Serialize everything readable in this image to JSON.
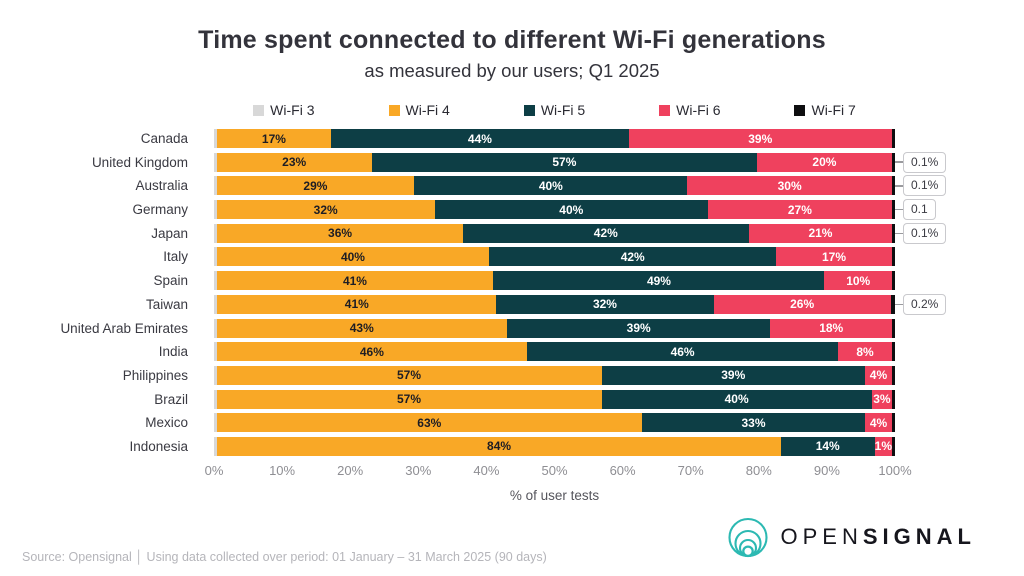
{
  "header": {
    "title": "Time spent connected to different Wi-Fi generations",
    "subtitle": "as measured by our users; Q1 2025"
  },
  "chart_data": {
    "type": "bar",
    "orientation": "horizontal",
    "stacked": true,
    "title": "Time spent connected to different Wi-Fi generations",
    "subtitle": "as measured by our users; Q1 2025",
    "xlabel": "% of user tests",
    "xlim": [
      0,
      100
    ],
    "x_ticks": [
      "0%",
      "10%",
      "20%",
      "30%",
      "40%",
      "50%",
      "60%",
      "70%",
      "80%",
      "90%",
      "100%"
    ],
    "legend_position": "top",
    "categories": [
      "Canada",
      "United Kingdom",
      "Australia",
      "Germany",
      "Japan",
      "Italy",
      "Spain",
      "Taiwan",
      "United Arab Emirates",
      "India",
      "Philippines",
      "Brazil",
      "Mexico",
      "Indonesia"
    ],
    "series": [
      {
        "name": "Wi-Fi 3",
        "color": "#d8d8d8",
        "show_labels": false,
        "label_color": "#3a3a42",
        "values": [
          0.2,
          0.2,
          0.3,
          0.3,
          0.5,
          0.3,
          0.2,
          0.5,
          0.2,
          0.3,
          0.3,
          0.3,
          0.3,
          0.5
        ]
      },
      {
        "name": "Wi-Fi 4",
        "color": "#f9a826",
        "show_labels": true,
        "label_color": "#1d1d24",
        "values": [
          17,
          23,
          29,
          32,
          36,
          40,
          41,
          41,
          43,
          46,
          57,
          57,
          63,
          84
        ]
      },
      {
        "name": "Wi-Fi 5",
        "color": "#0d3e45",
        "show_labels": true,
        "label_color": "#ffffff",
        "values": [
          44,
          57,
          40,
          40,
          42,
          42,
          49,
          32,
          39,
          46,
          39,
          40,
          33,
          14
        ]
      },
      {
        "name": "Wi-Fi 6",
        "color": "#ef415e",
        "show_labels": true,
        "label_color": "#ffffff",
        "values": [
          39,
          20,
          30,
          27,
          21,
          17,
          10,
          26,
          18,
          8,
          4,
          3,
          4,
          1
        ]
      },
      {
        "name": "Wi-Fi 7",
        "color": "#0e0e10",
        "show_labels": false,
        "label_color": "#ffffff",
        "values": [
          0.1,
          0.1,
          0.1,
          0.1,
          0.1,
          0.1,
          0.1,
          0.2,
          0.1,
          0.1,
          0.1,
          0.1,
          0.1,
          0.1
        ]
      }
    ],
    "callouts": [
      {
        "category": "United Kingdom",
        "label": "0.1%"
      },
      {
        "category": "Australia",
        "label": "0.1%"
      },
      {
        "category": "Germany",
        "label": "0.1"
      },
      {
        "category": "Japan",
        "label": "0.1%"
      },
      {
        "category": "Taiwan",
        "label": "0.2%"
      }
    ]
  },
  "footer": {
    "source_line": "Source: Opensignal │ Using data collected over period: 01 January – 31 March 2025 (90 days)"
  },
  "logo": {
    "part1": "OPEN",
    "part2": "SIGNAL",
    "icon_color": "#2cb9b2"
  }
}
